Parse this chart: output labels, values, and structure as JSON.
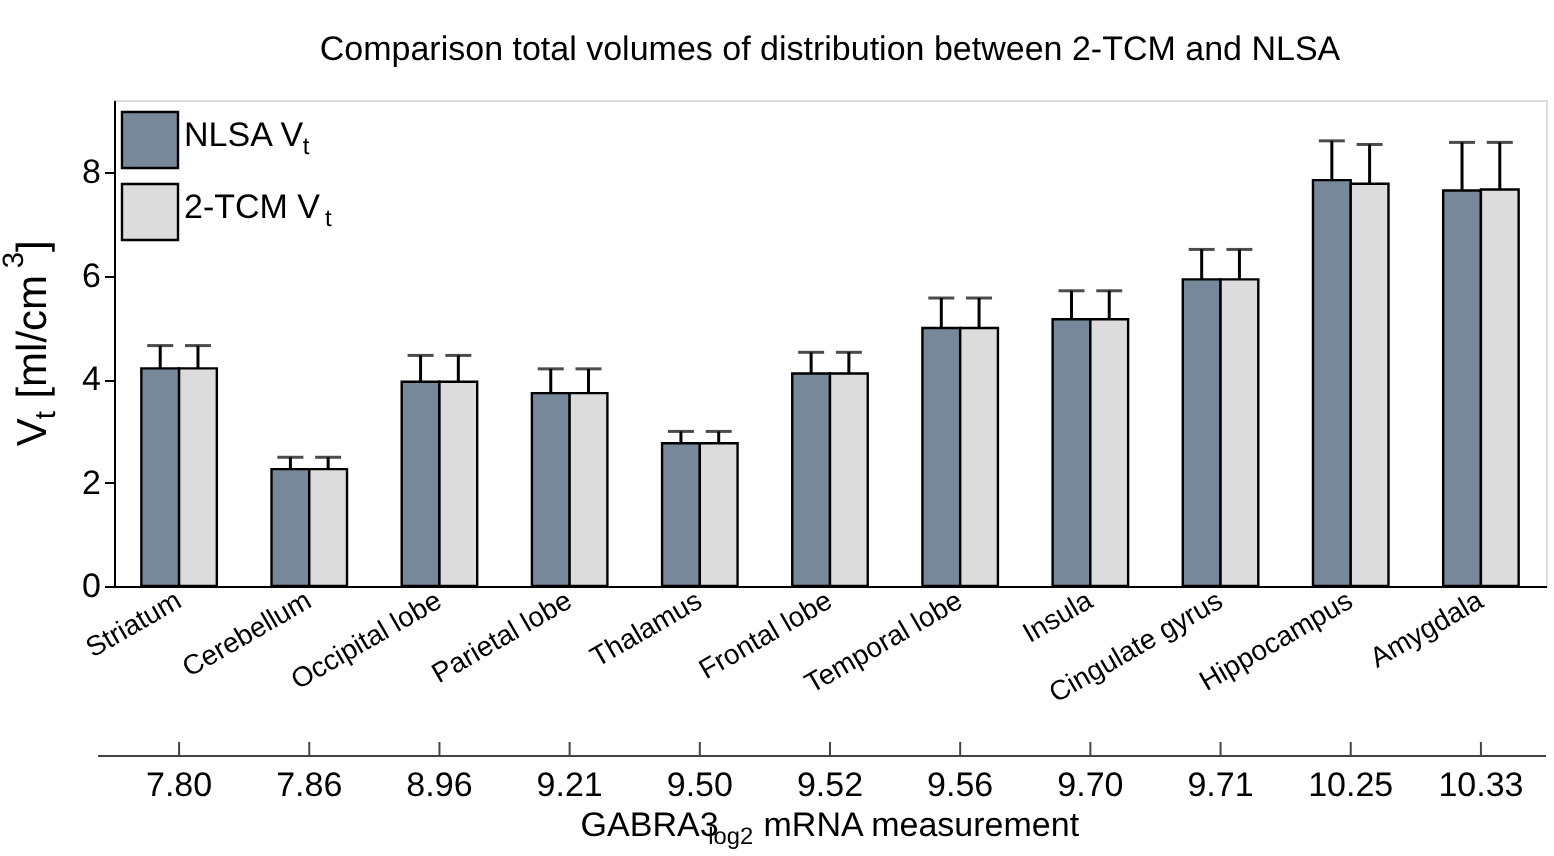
{
  "chart_data": {
    "type": "bar",
    "title": "Comparison total volumes of distribution between 2-TCM and NLSA",
    "categories": [
      "Striatum",
      "Cerebellum",
      "Occipital lobe",
      "Parietal lobe",
      "Thalamus",
      "Frontal lobe",
      "Temporal lobe",
      "Insula",
      "Cingulate gyrus",
      "Hippocampus",
      "Amygdala"
    ],
    "series": [
      {
        "name": "NLSA V$_{t}$",
        "color": "#76889a",
        "values": [
          4.21,
          2.26,
          3.95,
          3.73,
          2.76,
          4.11,
          4.99,
          5.16,
          5.93,
          7.85,
          7.65
        ],
        "errors": [
          [
            4.21,
            4.65
          ],
          [
            2.26,
            2.49
          ],
          [
            3.95,
            4.46
          ],
          [
            3.73,
            4.2
          ],
          [
            2.76,
            2.99
          ],
          [
            4.11,
            4.52
          ],
          [
            4.99,
            5.57
          ],
          [
            5.16,
            5.71
          ],
          [
            5.93,
            6.51
          ],
          [
            7.85,
            8.61
          ],
          [
            7.65,
            8.58
          ]
        ]
      },
      {
        "name": "2-TCM V$_{t}$",
        "color": "#dcdcdc",
        "values": [
          4.21,
          2.26,
          3.95,
          3.73,
          2.76,
          4.11,
          4.99,
          5.16,
          5.93,
          7.78,
          7.67
        ],
        "errors": [
          [
            4.21,
            4.65
          ],
          [
            2.26,
            2.49
          ],
          [
            3.95,
            4.46
          ],
          [
            3.73,
            4.2
          ],
          [
            2.76,
            2.99
          ],
          [
            4.11,
            4.52
          ],
          [
            4.99,
            5.57
          ],
          [
            5.16,
            5.71
          ],
          [
            5.93,
            6.51
          ],
          [
            7.78,
            8.54
          ],
          [
            7.67,
            8.58
          ]
        ]
      }
    ],
    "ylabel": "V$_{t}$ [ml/cm$^{3}$]",
    "xlabel": "GABRA3$_{log2}$ mRNA measurement",
    "ylim": [
      0,
      9.4
    ],
    "yticks": [
      0,
      2,
      4,
      6,
      8
    ],
    "grid": false,
    "legend": "top left",
    "annotations": [
      "7.80",
      "7.86",
      "8.96",
      "9.21",
      "9.50",
      "9.52",
      "9.56",
      "9.70",
      "9.71",
      "10.25",
      "10.33"
    ]
  }
}
